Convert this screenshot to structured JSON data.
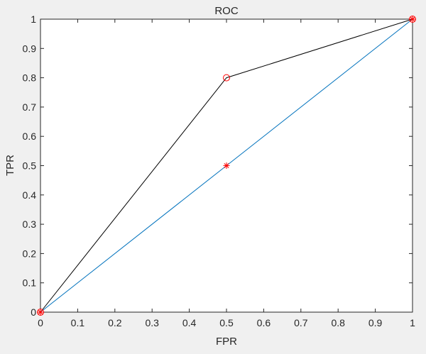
{
  "chart_data": {
    "type": "line",
    "title": "ROC",
    "xlabel": "FPR",
    "ylabel": "TPR",
    "xlim": [
      0,
      1
    ],
    "ylim": [
      0,
      1
    ],
    "grid": false,
    "xticks": [
      "0",
      "0.1",
      "0.2",
      "0.3",
      "0.4",
      "0.5",
      "0.6",
      "0.7",
      "0.8",
      "0.9",
      "1"
    ],
    "yticks": [
      "0",
      "0.1",
      "0.2",
      "0.3",
      "0.4",
      "0.5",
      "0.6",
      "0.7",
      "0.8",
      "0.9",
      "1"
    ],
    "series": [
      {
        "x": [
          0,
          0.5,
          1
        ],
        "y": [
          0,
          0.8,
          1
        ],
        "color": "#000000",
        "marker": "circle",
        "marker_color": "#ff0000"
      },
      {
        "x": [
          0,
          0.5,
          1
        ],
        "y": [
          0,
          0.5,
          1
        ],
        "color": "#0072bd",
        "marker": "star",
        "marker_color": "#ff0000"
      }
    ]
  }
}
